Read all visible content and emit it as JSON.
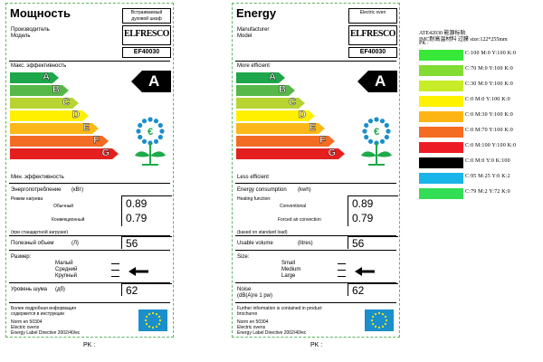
{
  "labels": [
    {
      "lang": "ru",
      "title": "Мощность",
      "manufacturer_label": "Производитель",
      "model_label": "Модель",
      "category": "Встраиваемый духовой шкаф",
      "brand": "ELFRESCO",
      "model": "EF40030",
      "efficient_text": "Макс. эффективность",
      "less_efficient_text": "Мин. эффективность",
      "class": "A",
      "energy_label": "Энергопотребление",
      "energy_unit": "(кВт)",
      "heating_function": "Режим нагрева",
      "conventional": "Обычный",
      "forced_air": "Конвекционный",
      "standard_load": "(при стандартной загрузке)",
      "energy_conventional": "0.89",
      "energy_forced": "0.79",
      "volume_label": "Полезный объем",
      "volume_unit": "(Л)",
      "volume_value": "56",
      "size_label": "Размер:",
      "size_small": "Малый",
      "size_medium": "Средний",
      "size_large": "Крупный",
      "noise_label": "Уровень шума",
      "noise_unit": "(дб)",
      "noise_value": "62",
      "further_info": "Более подробная информация содержится в инструкции",
      "norm": "Norm en 50304",
      "norm2": "Electric ovens",
      "directive": "Energy Label Directive 2002/40/ec",
      "caption": "PK :"
    },
    {
      "lang": "en",
      "title": "Energy",
      "manufacturer_label": "Manufacturer",
      "model_label": "Model",
      "category": "Electric oven",
      "brand": "ELFRESCO",
      "model": "EF40030",
      "efficient_text": "More efficient",
      "less_efficient_text": "Less efficient",
      "class": "A",
      "energy_label": "Energy consumption",
      "energy_unit": "(kwh)",
      "heating_function": "Heating function:",
      "conventional": "Conventional",
      "forced_air": "Forced air convection",
      "standard_load": "(based on standard load)",
      "energy_conventional": "0.89",
      "energy_forced": "0.79",
      "volume_label": "Usable volume",
      "volume_unit": "(litres)",
      "volume_value": "56",
      "size_label": "Size:",
      "size_small": "Small",
      "size_medium": "Medium",
      "size_large": "Large",
      "noise_label": "Noise",
      "noise_unit": "(dB(A)re 1 pw)",
      "noise_value": "62",
      "further_info": "Further information is contained in product brochures",
      "norm": "Norm en 50304",
      "norm2": "Electric ovens",
      "directive": "Energy Label Directive 2002/40/ec",
      "caption": "PK :"
    }
  ],
  "grades": [
    {
      "letter": "A",
      "color": "#1ea64a"
    },
    {
      "letter": "B",
      "color": "#56b848"
    },
    {
      "letter": "C",
      "color": "#b7d433"
    },
    {
      "letter": "D",
      "color": "#fff000"
    },
    {
      "letter": "E",
      "color": "#fbb818"
    },
    {
      "letter": "F",
      "color": "#f26c23"
    },
    {
      "letter": "G",
      "color": "#e4201f"
    }
  ],
  "spec": {
    "header": "ATE42030 能源标贴",
    "material": "IMC耐高温材料 过膜  size:122*255mm",
    "pk": "PK :"
  },
  "swatches": [
    {
      "color": "#38e838",
      "cmyk": "C:100   M:0   Y:100  K:0"
    },
    {
      "color": "#82dc34",
      "cmyk": "C:70    M:0   Y:100  K:0"
    },
    {
      "color": "#c8ec28",
      "cmyk": "C:30    M:0   Y:100  K:0"
    },
    {
      "color": "#fff200",
      "cmyk": "C:0     M:0   Y:100  K:0"
    },
    {
      "color": "#fdb515",
      "cmyk": "C:0     M:30  Y:100  K:0"
    },
    {
      "color": "#f36c21",
      "cmyk": "C:0     M:70  Y:100  K:0"
    },
    {
      "color": "#ed1c24",
      "cmyk": "C:0     M:100 Y:100  K:0"
    },
    {
      "color": "#000000",
      "cmyk": "C:0     M:0   Y:0    K:100"
    },
    {
      "color": "#19b4e8",
      "cmyk": "C:95    M:25  Y:0    K:2"
    },
    {
      "color": "#33dd55",
      "cmyk": "C:79    M:2   Y:72   K:0"
    }
  ]
}
